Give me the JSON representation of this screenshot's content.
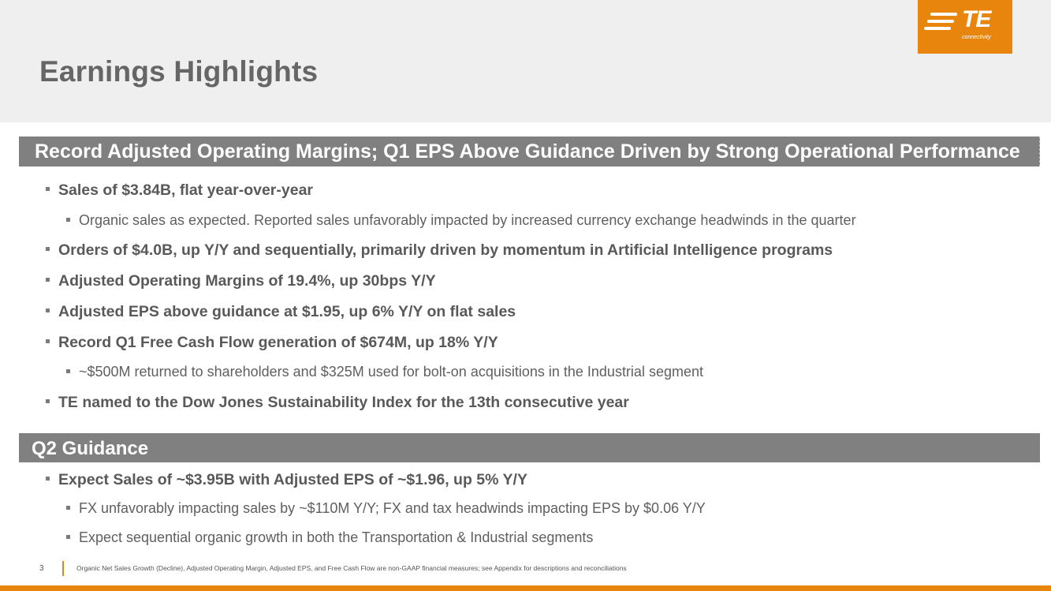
{
  "slide": {
    "title": "Earnings Highlights"
  },
  "logo": {
    "brand": "TE",
    "tagline": "connectivity",
    "color": "#e8850c"
  },
  "section1": {
    "heading": "Record Adjusted Operating Margins; Q1 EPS Above Guidance Driven by Strong Operational Performance",
    "bullets": [
      "Sales of $3.84B, flat year-over-year",
      "Organic sales as expected. Reported sales unfavorably impacted by increased currency exchange headwinds in the quarter",
      "Orders of $4.0B, up Y/Y and sequentially, primarily driven by momentum in Artificial Intelligence programs",
      "Adjusted Operating Margins of 19.4%, up 30bps Y/Y",
      "Adjusted EPS above guidance at $1.95, up 6% Y/Y on flat sales",
      "Record Q1 Free Cash Flow generation of $674M, up 18% Y/Y",
      "~$500M returned to shareholders and $325M used for bolt-on acquisitions in the Industrial segment",
      "TE named to the Dow Jones Sustainability Index for the 13th consecutive year"
    ]
  },
  "section2": {
    "heading": "Q2 Guidance",
    "bullets": [
      "Expect Sales of ~$3.95B with Adjusted EPS of ~$1.96, up 5% Y/Y",
      "FX unfavorably impacting sales by ~$110M Y/Y; FX and tax headwinds impacting EPS by $0.06 Y/Y",
      "Expect sequential organic growth in both the Transportation & Industrial segments"
    ]
  },
  "footer": {
    "page_number": "3",
    "note": "Organic Net Sales Growth (Decline), Adjusted Operating Margin, Adjusted EPS, and Free Cash Flow are non-GAAP financial measures; see Appendix for descriptions and reconciliations"
  }
}
